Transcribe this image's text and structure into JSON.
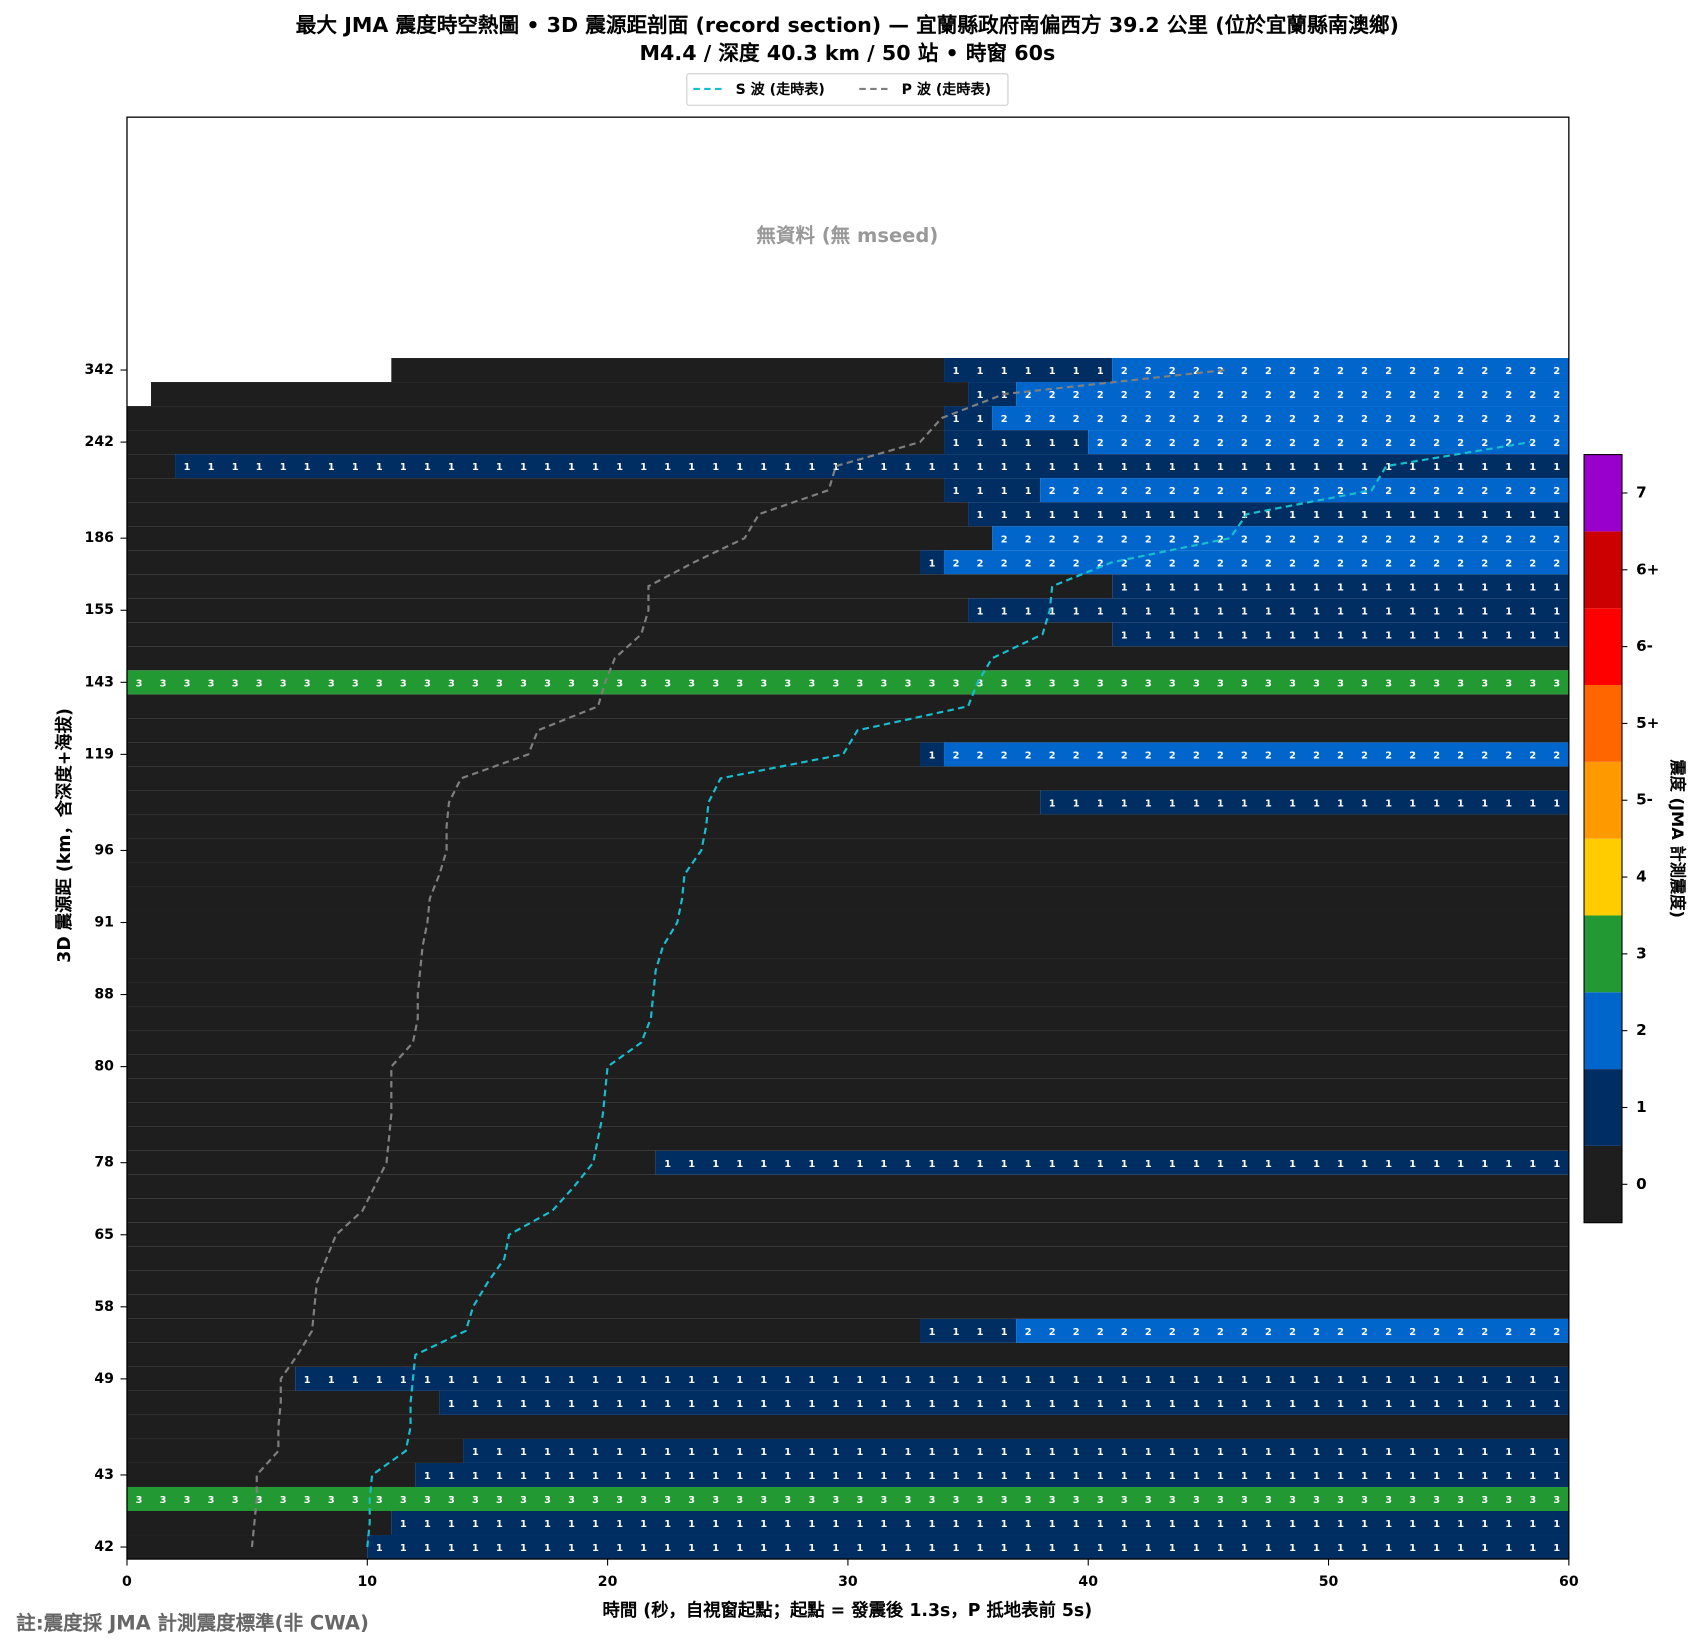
{
  "chart_data": {
    "type": "heatmap",
    "title": "最大 JMA 震度時空熱圖 • 3D 震源距剖面 (record section) — 宜蘭縣政府南偏西方  39.2  公里 (位於宜蘭縣南澳鄉)",
    "subtitle": "M4.4 / 深度 40.3 km / 50 站 • 時窗 60s",
    "xlabel": "時間 (秒，自視窗起點；起點 = 發震後 1.3s，P 抵地表前 5s)",
    "ylabel": "3D 震源距 (km，含深度+海拔)",
    "annotation": "無資料 (無 mseed)",
    "footnote": "註:震度採 JMA 計測震度標準(非 CWA)",
    "xlim": [
      0,
      60
    ],
    "xticks": [
      0,
      10,
      20,
      30,
      40,
      50,
      60
    ],
    "categories": [
      "42",
      null,
      null,
      "43",
      null,
      null,
      null,
      "49",
      null,
      null,
      "58",
      null,
      null,
      "65",
      null,
      null,
      "78",
      null,
      null,
      null,
      "80",
      null,
      null,
      "88",
      null,
      null,
      "91",
      null,
      null,
      "96",
      null,
      null,
      null,
      "119",
      null,
      null,
      "143",
      null,
      null,
      "155",
      null,
      null,
      "186",
      null,
      null,
      null,
      "242",
      null,
      null,
      "342"
    ],
    "rows": [
      [
        [
          0,
          10,
          0
        ],
        [
          10,
          60,
          1
        ]
      ],
      [
        [
          0,
          11,
          0
        ],
        [
          11,
          60,
          1
        ]
      ],
      [
        [
          0,
          60,
          3
        ]
      ],
      [
        [
          0,
          12,
          0
        ],
        [
          12,
          60,
          1
        ]
      ],
      [
        [
          0,
          14,
          0
        ],
        [
          14,
          60,
          1
        ]
      ],
      [
        [
          0,
          60,
          0
        ]
      ],
      [
        [
          0,
          13,
          0
        ],
        [
          13,
          60,
          1
        ]
      ],
      [
        [
          0,
          7,
          0
        ],
        [
          7,
          60,
          1
        ]
      ],
      [
        [
          0,
          60,
          0
        ]
      ],
      [
        [
          0,
          33,
          0
        ],
        [
          33,
          37,
          1
        ],
        [
          37,
          60,
          2
        ]
      ],
      [
        [
          0,
          60,
          0
        ]
      ],
      [
        [
          0,
          60,
          0
        ]
      ],
      [
        [
          0,
          60,
          0
        ]
      ],
      [
        [
          0,
          60,
          0
        ]
      ],
      [
        [
          0,
          60,
          0
        ]
      ],
      [
        [
          0,
          60,
          0
        ]
      ],
      [
        [
          0,
          22,
          0
        ],
        [
          22,
          60,
          1
        ]
      ],
      [
        [
          0,
          60,
          0
        ]
      ],
      [
        [
          0,
          60,
          0
        ]
      ],
      [
        [
          0,
          60,
          0
        ]
      ],
      [
        [
          0,
          60,
          0
        ]
      ],
      [
        [
          0,
          60,
          0
        ]
      ],
      [
        [
          0,
          60,
          0
        ]
      ],
      [
        [
          0,
          60,
          0
        ]
      ],
      [
        [
          0,
          60,
          0
        ]
      ],
      [
        [
          0,
          60,
          0
        ]
      ],
      [
        [
          0,
          60,
          0
        ]
      ],
      [
        [
          0,
          60,
          0
        ]
      ],
      [
        [
          0,
          60,
          0
        ]
      ],
      [
        [
          0,
          60,
          0
        ]
      ],
      [
        [
          0,
          60,
          0
        ]
      ],
      [
        [
          0,
          38,
          0
        ],
        [
          38,
          60,
          1
        ]
      ],
      [
        [
          0,
          60,
          0
        ]
      ],
      [
        [
          0,
          33,
          0
        ],
        [
          33,
          34,
          1
        ],
        [
          34,
          60,
          2
        ]
      ],
      [
        [
          0,
          60,
          0
        ]
      ],
      [
        [
          0,
          60,
          0
        ]
      ],
      [
        [
          0,
          60,
          3
        ]
      ],
      [
        [
          0,
          60,
          0
        ]
      ],
      [
        [
          0,
          41,
          0
        ],
        [
          41,
          60,
          1
        ]
      ],
      [
        [
          0,
          35,
          0
        ],
        [
          35,
          60,
          1
        ]
      ],
      [
        [
          0,
          41,
          0
        ],
        [
          41,
          60,
          1
        ]
      ],
      [
        [
          0,
          33,
          0
        ],
        [
          33,
          34,
          1
        ],
        [
          34,
          60,
          2
        ]
      ],
      [
        [
          0,
          36,
          0
        ],
        [
          36,
          60,
          2
        ]
      ],
      [
        [
          0,
          35,
          0
        ],
        [
          35,
          60,
          1
        ]
      ],
      [
        [
          0,
          34,
          0
        ],
        [
          34,
          38,
          1
        ],
        [
          38,
          60,
          2
        ]
      ],
      [
        [
          0,
          2,
          0
        ],
        [
          2,
          60,
          1
        ]
      ],
      [
        [
          0,
          34,
          0
        ],
        [
          34,
          40,
          1
        ],
        [
          40,
          60,
          2
        ]
      ],
      [
        [
          0,
          34,
          0
        ],
        [
          34,
          36,
          1
        ],
        [
          36,
          60,
          2
        ]
      ],
      [
        [
          1,
          35,
          0
        ],
        [
          35,
          37,
          1
        ],
        [
          37,
          60,
          2
        ]
      ],
      [
        [
          11,
          34,
          0
        ],
        [
          34,
          41,
          1
        ],
        [
          41,
          60,
          2
        ]
      ]
    ],
    "series": [
      {
        "name": "S 波 (走時表)",
        "color": "#17becf",
        "values": [
          10.0,
          10.1,
          10.1,
          10.2,
          11.6,
          11.8,
          11.8,
          11.9,
          12.0,
          14.1,
          14.4,
          15.0,
          15.7,
          15.9,
          17.7,
          18.6,
          19.4,
          19.6,
          19.8,
          19.9,
          20.0,
          21.4,
          21.8,
          21.9,
          22.0,
          22.3,
          22.9,
          23.1,
          23.2,
          23.9,
          24.1,
          24.2,
          24.7,
          29.8,
          30.4,
          35.0,
          35.4,
          36.0,
          38.1,
          38.4,
          38.5,
          41.0,
          45.9,
          46.6,
          51.8,
          52.4,
          58.4,
          null,
          null,
          null
        ]
      },
      {
        "name": "P 波 (走時表)",
        "color": "#7f7f7f",
        "values": [
          5.2,
          5.3,
          5.4,
          5.4,
          6.3,
          6.3,
          6.4,
          6.4,
          7.1,
          7.7,
          7.8,
          7.9,
          8.3,
          8.7,
          9.8,
          10.3,
          10.8,
          10.9,
          11.0,
          11.0,
          11.0,
          11.9,
          12.1,
          12.1,
          12.2,
          12.3,
          12.5,
          12.6,
          13.0,
          13.3,
          13.3,
          13.4,
          13.9,
          16.7,
          17.1,
          19.6,
          19.9,
          20.3,
          21.4,
          21.7,
          21.7,
          23.6,
          25.7,
          26.3,
          29.2,
          29.5,
          33.0,
          33.9,
          36.5,
          45.7
        ]
      }
    ],
    "colorbar": {
      "label": "震度 (JMA 計測震度)",
      "levels": [
        "0",
        "1",
        "2",
        "3",
        "4",
        "5-",
        "5+",
        "6-",
        "6+",
        "7"
      ],
      "colors": [
        "#1e1e1e",
        "#002d62",
        "#0066cc",
        "#229933",
        "#ffcc00",
        "#ff9900",
        "#ff6600",
        "#ff0000",
        "#cc0000",
        "#9900cc"
      ]
    }
  }
}
